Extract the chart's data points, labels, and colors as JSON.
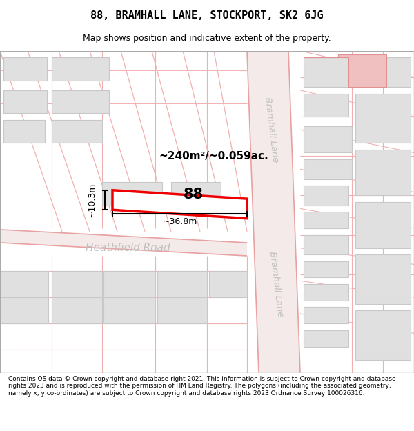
{
  "title": "88, BRAMHALL LANE, STOCKPORT, SK2 6JG",
  "subtitle": "Map shows position and indicative extent of the property.",
  "footer": "Contains OS data © Crown copyright and database right 2021. This information is subject to Crown copyright and database rights 2023 and is reproduced with the permission of HM Land Registry. The polygons (including the associated geometry, namely x, y co-ordinates) are subject to Crown copyright and database rights 2023 Ordnance Survey 100026316.",
  "area_text": "~240m²/~0.059ac.",
  "width_text": "~36.8m",
  "height_text": "~10.3m",
  "number_text": "88",
  "road_label_bramhall": "Bramhall Lane",
  "road_label_heathfield": "Heathfield Road",
  "bg_color": "#faf8f8",
  "road_fill": "#f5eaea",
  "road_line": "#e8a0a0",
  "cadastral_line": "#f0b0b0",
  "building_fill": "#e0e0e0",
  "building_edge": "#c8c8c8",
  "highlight_fill": "#ffffff",
  "highlight_edge": "#ee0000",
  "dim_color": "#000000",
  "label_color": "#c0c0c0",
  "title_font": "monospace",
  "footer_fontsize": 6.5,
  "title_fontsize": 11,
  "subtitle_fontsize": 9
}
